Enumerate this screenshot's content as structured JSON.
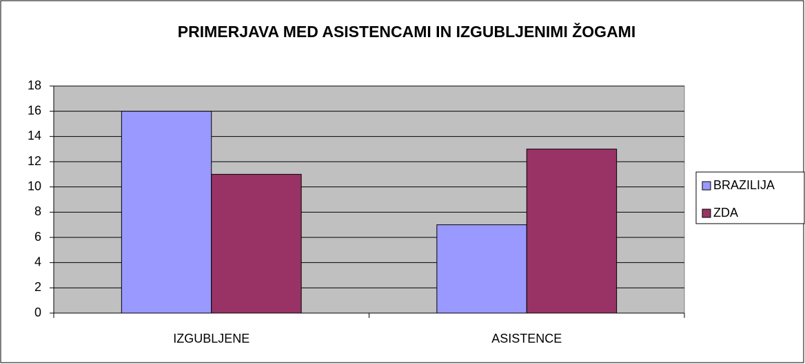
{
  "chart_data": {
    "type": "bar",
    "title": "PRIMERJAVA MED ASISTENCAMI IN IZGUBLJENIMI ŽOGAMI",
    "categories": [
      "IZGUBLJENE",
      "ASISTENCE"
    ],
    "series": [
      {
        "name": "BRAZILIJA",
        "color": "#9999ff",
        "values": [
          16,
          7
        ]
      },
      {
        "name": "ZDA",
        "color": "#993366",
        "values": [
          11,
          13
        ]
      }
    ],
    "ylim": [
      0,
      18
    ],
    "yticks": [
      0,
      2,
      4,
      6,
      8,
      10,
      12,
      14,
      16,
      18
    ],
    "grid": true,
    "legend": "right"
  }
}
